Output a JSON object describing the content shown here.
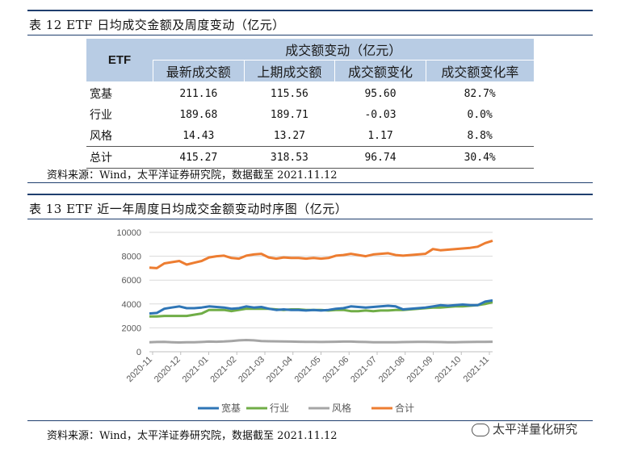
{
  "table12": {
    "caption": "表 12  ETF 日均成交金额及周度变动（亿元）",
    "corner_header": "ETF",
    "group_header": "成交额变动（亿元）",
    "columns": [
      "最新成交额",
      "上期成交额",
      "成交额变化",
      "成交额变化率"
    ],
    "rows": [
      {
        "label": "宽基",
        "cells": [
          "211.16",
          "115.56",
          "95.60",
          "82.7%"
        ]
      },
      {
        "label": "行业",
        "cells": [
          "189.68",
          "189.71",
          "-0.03",
          "0.0%"
        ]
      },
      {
        "label": "风格",
        "cells": [
          "14.43",
          "13.27",
          "1.17",
          "8.8%"
        ]
      },
      {
        "label": "总计",
        "cells": [
          "415.27",
          "318.53",
          "96.74",
          "30.4%"
        ]
      }
    ],
    "source": "资料来源：Wind，太平洋证券研究院，数据截至 2021.11.12"
  },
  "table13": {
    "caption": "表 13  ETF 近一年周度日均成交金额变动时序图（亿元）",
    "source": "资料来源：Wind，太平洋证券研究院，数据截至 2021.11.12"
  },
  "watermark": "太平洋量化研究",
  "chart_data": {
    "type": "line",
    "title": "",
    "xlabel": "",
    "ylabel": "",
    "ylim": [
      0,
      10000
    ],
    "yticks": [
      "0",
      "2000",
      "4000",
      "6000",
      "8000",
      "10000"
    ],
    "xticks": [
      "2020-11",
      "2020-12",
      "2021-01",
      "2021-02",
      "2021-03",
      "2021-04",
      "2021-05",
      "2021-06",
      "2021-07",
      "2021-08",
      "2021-09",
      "2021-10",
      "2021-11"
    ],
    "legend_position": "bottom",
    "series": [
      {
        "name": "宽基",
        "color": "#2e75b6",
        "values": [
          3200,
          3250,
          3600,
          3700,
          3800,
          3650,
          3650,
          3700,
          3800,
          3750,
          3700,
          3600,
          3650,
          3800,
          3700,
          3750,
          3600,
          3500,
          3550,
          3500,
          3500,
          3450,
          3500,
          3450,
          3500,
          3600,
          3650,
          3800,
          3750,
          3700,
          3750,
          3800,
          3850,
          3800,
          3550,
          3600,
          3650,
          3700,
          3800,
          3900,
          3850,
          3900,
          3950,
          3900,
          3900,
          4200,
          4300
        ]
      },
      {
        "name": "行业",
        "color": "#70ad47",
        "values": [
          2950,
          2950,
          3000,
          3000,
          3000,
          3000,
          3100,
          3200,
          3500,
          3500,
          3500,
          3400,
          3500,
          3600,
          3600,
          3600,
          3600,
          3550,
          3500,
          3550,
          3550,
          3500,
          3500,
          3500,
          3450,
          3500,
          3500,
          3400,
          3400,
          3450,
          3400,
          3450,
          3450,
          3500,
          3500,
          3550,
          3600,
          3650,
          3700,
          3700,
          3750,
          3800,
          3800,
          3850,
          3900,
          4000,
          4150
        ]
      },
      {
        "name": "风格",
        "color": "#a5a5a5",
        "values": [
          800,
          820,
          830,
          800,
          780,
          790,
          800,
          820,
          850,
          840,
          860,
          900,
          950,
          980,
          950,
          900,
          880,
          870,
          860,
          850,
          840,
          830,
          830,
          820,
          830,
          840,
          850,
          850,
          830,
          820,
          800,
          800,
          790,
          800,
          810,
          820,
          830,
          830,
          820,
          810,
          800,
          800,
          810,
          820,
          830,
          830,
          840
        ]
      },
      {
        "name": "合计",
        "color": "#ed7d31",
        "values": [
          7050,
          7000,
          7400,
          7500,
          7600,
          7300,
          7450,
          7600,
          7900,
          8000,
          8050,
          7850,
          7800,
          8050,
          8150,
          8200,
          7900,
          7800,
          7900,
          7850,
          7850,
          7800,
          7850,
          7800,
          7850,
          8050,
          8100,
          8200,
          8100,
          8000,
          8150,
          8200,
          8250,
          8100,
          8050,
          8100,
          8150,
          8200,
          8600,
          8500,
          8550,
          8600,
          8650,
          8700,
          8800,
          9100,
          9300
        ]
      }
    ]
  }
}
